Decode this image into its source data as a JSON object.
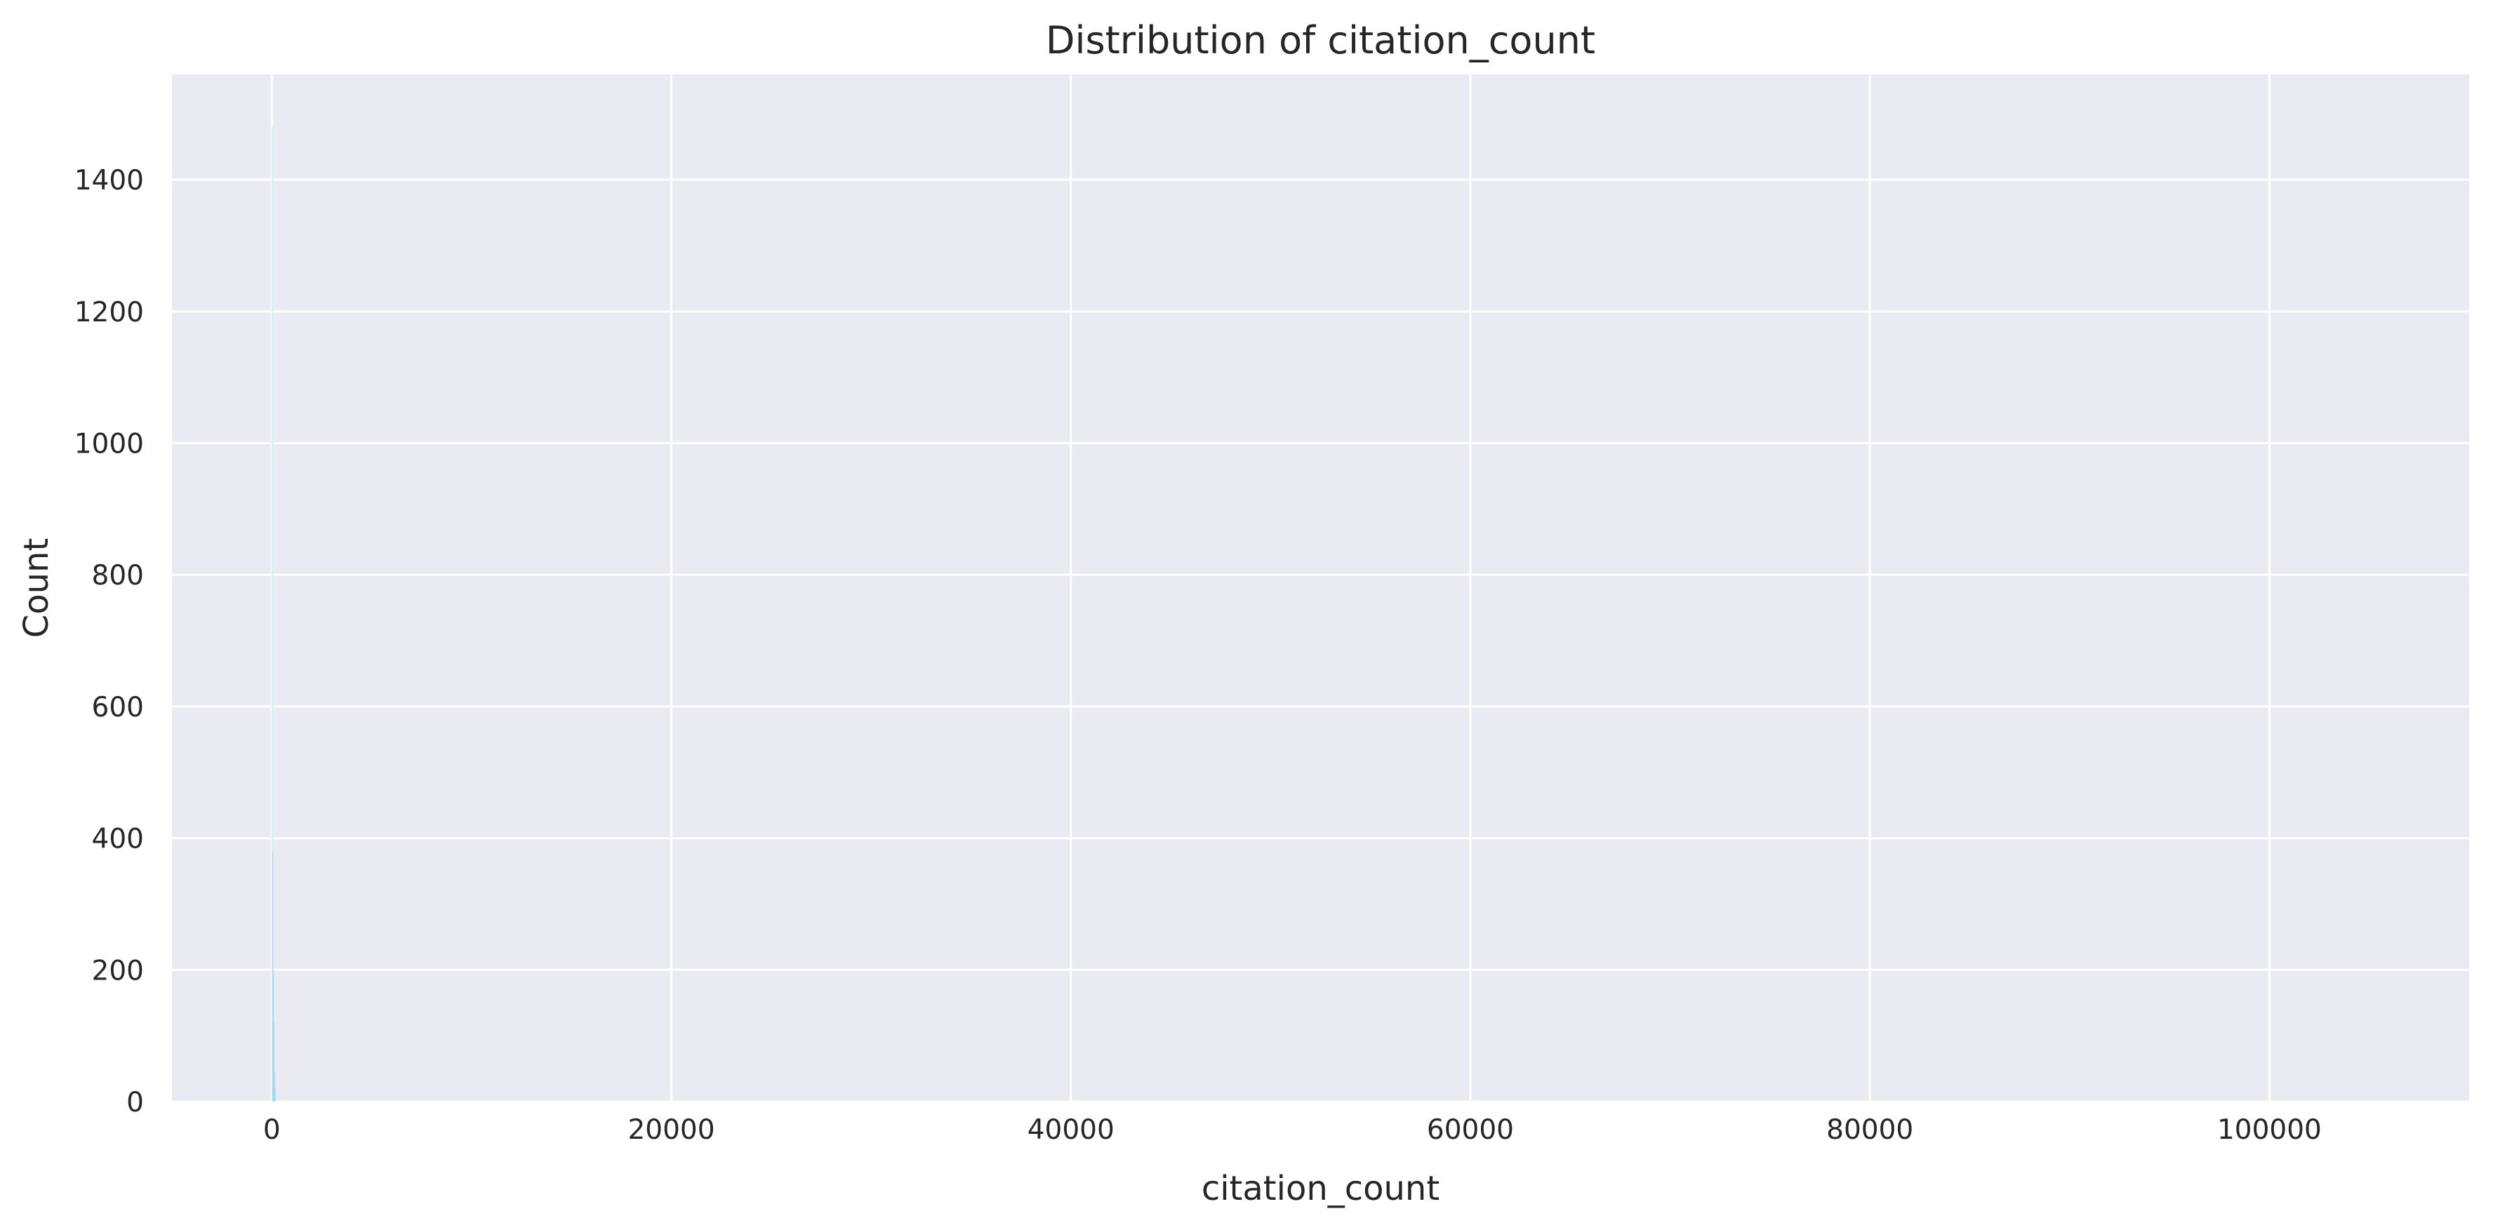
{
  "chart_data": {
    "type": "bar",
    "title": "Distribution of citation_count",
    "xlabel": "citation_count",
    "ylabel": "Count",
    "xlim": [
      -5000,
      110000
    ],
    "ylim": [
      0,
      1560
    ],
    "xticks": [
      0,
      20000,
      40000,
      60000,
      80000,
      100000
    ],
    "yticks": [
      0,
      200,
      400,
      600,
      800,
      1000,
      1200,
      1400
    ],
    "grid": true,
    "bar_color": "#87CEEB",
    "background_color": "#EAEAF2",
    "grid_color": "#FFFFFF",
    "bins": [
      {
        "x0": 0,
        "x1": 30,
        "count": 1480
      },
      {
        "x0": 30,
        "x1": 60,
        "count": 380
      },
      {
        "x0": 60,
        "x1": 90,
        "count": 200
      },
      {
        "x0": 90,
        "x1": 120,
        "count": 120
      },
      {
        "x0": 120,
        "x1": 150,
        "count": 45
      },
      {
        "x0": 150,
        "x1": 180,
        "count": 20
      }
    ]
  }
}
